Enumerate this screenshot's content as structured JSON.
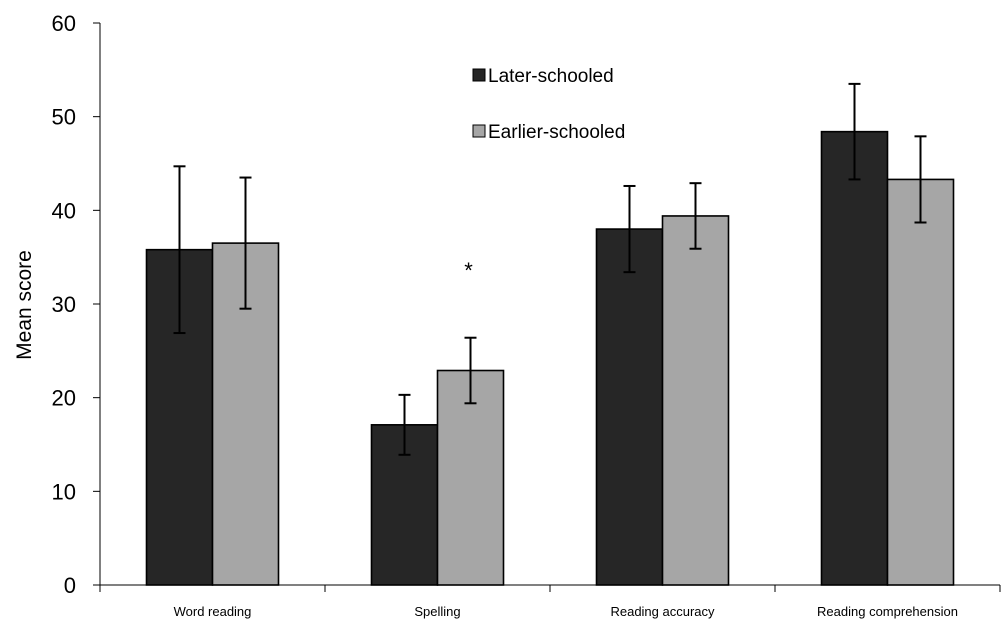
{
  "chart_data": {
    "type": "bar",
    "title": "",
    "xlabel": "",
    "ylabel": "Mean score",
    "ylim": [
      0,
      60
    ],
    "yticks": [
      0,
      10,
      20,
      30,
      40,
      50,
      60
    ],
    "categories": [
      "Word reading",
      "Spelling",
      "Reading accuracy",
      "Reading comprehension"
    ],
    "series": [
      {
        "name": "Later-schooled",
        "color": "#262626",
        "values": [
          35.8,
          17.1,
          38.0,
          48.4
        ],
        "error": [
          8.9,
          3.2,
          4.6,
          5.1
        ]
      },
      {
        "name": "Earlier-schooled",
        "color": "#a6a6a6",
        "values": [
          36.5,
          22.9,
          39.4,
          43.3
        ],
        "error": [
          7.0,
          3.5,
          3.5,
          4.6
        ]
      }
    ],
    "annotations": [
      {
        "text": "*",
        "category": "Spelling"
      }
    ],
    "grid": false,
    "legend_position": "top-center"
  }
}
